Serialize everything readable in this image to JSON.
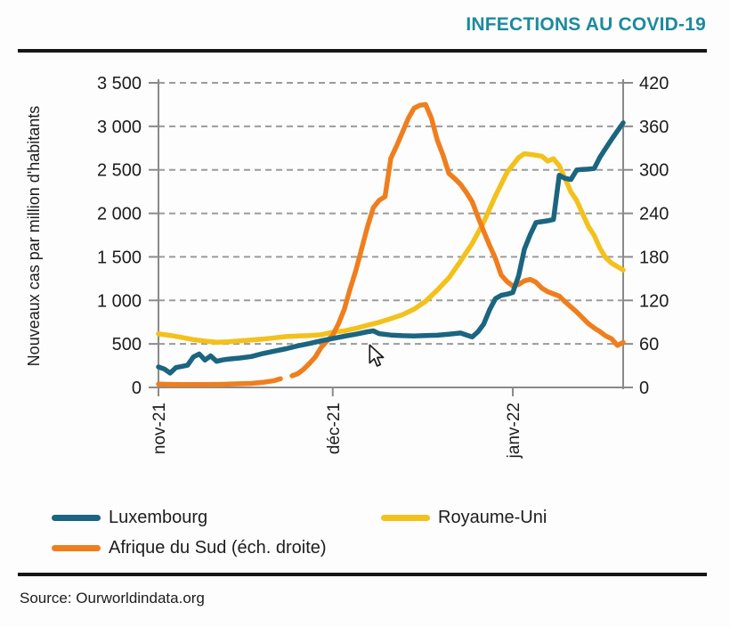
{
  "header": {
    "title": "INFECTIONS AU COVID-19",
    "title_color": "#1C8A9E"
  },
  "source": {
    "text": "Source: Ourworldindata.org"
  },
  "icons": {
    "mouse_cursor": "arrow-pointer"
  },
  "chart_data": {
    "type": "line",
    "title": "INFECTIONS AU COVID-19",
    "x_unit": "days since 1 nov 2021",
    "x_range_days": [
      0,
      80
    ],
    "grid": "horizontal dashed",
    "legend_position": "bottom-left",
    "x_ticks": [
      {
        "day": 0,
        "label": "nov-21"
      },
      {
        "day": 30,
        "label": "déc-21"
      },
      {
        "day": 61,
        "label": "janv-22"
      }
    ],
    "y_left": {
      "title": "Nouveaux cas par million d'habitants",
      "min": 0,
      "max": 3500,
      "gridline_values": [
        500,
        1000,
        1500,
        2000,
        2500,
        3000,
        3500
      ],
      "ticks": [
        {
          "value": 0,
          "label": "0"
        },
        {
          "value": 500,
          "label": "500"
        },
        {
          "value": 1000,
          "label": "1 000"
        },
        {
          "value": 1500,
          "label": "1 500"
        },
        {
          "value": 2000,
          "label": "2 000"
        },
        {
          "value": 2500,
          "label": "2 500"
        },
        {
          "value": 3000,
          "label": "3 000"
        },
        {
          "value": 3500,
          "label": "3 500"
        }
      ]
    },
    "y_right": {
      "title": "éch. droite (Afrique du Sud)",
      "min": 0,
      "max": 420,
      "ticks": [
        {
          "value": 0,
          "label": "0"
        },
        {
          "value": 60,
          "label": "60"
        },
        {
          "value": 120,
          "label": "120"
        },
        {
          "value": 180,
          "label": "180"
        },
        {
          "value": 240,
          "label": "240"
        },
        {
          "value": 300,
          "label": "300"
        },
        {
          "value": 360,
          "label": "360"
        },
        {
          "value": 420,
          "label": "420"
        }
      ]
    },
    "series": [
      {
        "name": "Luxembourg",
        "slug": "luxembourg",
        "color": "#1B6580",
        "axis": "left",
        "z": 3,
        "segments": [
          [
            [
              0,
              235
            ],
            [
              1,
              212
            ],
            [
              2,
              165
            ],
            [
              3,
              228
            ],
            [
              4,
              242
            ],
            [
              5,
              255
            ],
            [
              6,
              350
            ],
            [
              7,
              385
            ],
            [
              8,
              315
            ],
            [
              9,
              362
            ],
            [
              10,
              300
            ],
            [
              11,
              315
            ],
            [
              12,
              325
            ],
            [
              14,
              338
            ],
            [
              16,
              355
            ],
            [
              18,
              390
            ],
            [
              20,
              418
            ],
            [
              22,
              445
            ],
            [
              24,
              478
            ],
            [
              26,
              505
            ],
            [
              28,
              535
            ],
            [
              30,
              562
            ],
            [
              32,
              588
            ],
            [
              34,
              612
            ],
            [
              36,
              640
            ],
            [
              37,
              650
            ],
            [
              38,
              618
            ],
            [
              40,
              602
            ],
            [
              42,
              595
            ],
            [
              44,
              590
            ],
            [
              46,
              596
            ],
            [
              48,
              600
            ],
            [
              50,
              612
            ],
            [
              52,
              625
            ],
            [
              53,
              603
            ],
            [
              54,
              580
            ],
            [
              55,
              640
            ],
            [
              56,
              730
            ],
            [
              57,
              890
            ],
            [
              58,
              1020
            ],
            [
              59,
              1058
            ],
            [
              60,
              1072
            ],
            [
              61,
              1090
            ],
            [
              62,
              1280
            ],
            [
              63,
              1590
            ],
            [
              64,
              1755
            ],
            [
              65,
              1895
            ],
            [
              66,
              1905
            ],
            [
              67,
              1915
            ],
            [
              68,
              1930
            ],
            [
              69,
              2438
            ],
            [
              70,
              2402
            ],
            [
              71,
              2390
            ],
            [
              72,
              2498
            ],
            [
              73,
              2505
            ],
            [
              74,
              2508
            ],
            [
              75,
              2515
            ],
            [
              76,
              2645
            ],
            [
              77,
              2748
            ],
            [
              78,
              2850
            ],
            [
              79,
              2945
            ],
            [
              80,
              3040
            ]
          ]
        ]
      },
      {
        "name": "Royaume-Uni",
        "slug": "royaume-uni",
        "color": "#F3C11C",
        "axis": "left",
        "z": 1,
        "segments": [
          [
            [
              0,
              615
            ],
            [
              2,
              598
            ],
            [
              4,
              575
            ],
            [
              6,
              550
            ],
            [
              8,
              532
            ],
            [
              10,
              520
            ],
            [
              12,
              524
            ],
            [
              14,
              534
            ],
            [
              16,
              545
            ],
            [
              18,
              556
            ],
            [
              20,
              570
            ],
            [
              22,
              584
            ],
            [
              24,
              590
            ],
            [
              26,
              596
            ],
            [
              28,
              605
            ],
            [
              30,
              636
            ],
            [
              32,
              650
            ],
            [
              34,
              680
            ],
            [
              36,
              714
            ],
            [
              38,
              748
            ],
            [
              40,
              790
            ],
            [
              42,
              836
            ],
            [
              44,
              900
            ],
            [
              46,
              990
            ],
            [
              48,
              1118
            ],
            [
              50,
              1260
            ],
            [
              52,
              1450
            ],
            [
              54,
              1654
            ],
            [
              56,
              1900
            ],
            [
              58,
              2200
            ],
            [
              60,
              2470
            ],
            [
              61,
              2555
            ],
            [
              62,
              2640
            ],
            [
              63,
              2685
            ],
            [
              64,
              2678
            ],
            [
              65,
              2668
            ],
            [
              66,
              2658
            ],
            [
              67,
              2600
            ],
            [
              68,
              2628
            ],
            [
              69,
              2548
            ],
            [
              70,
              2400
            ],
            [
              71,
              2245
            ],
            [
              72,
              2148
            ],
            [
              73,
              2000
            ],
            [
              74,
              1850
            ],
            [
              75,
              1748
            ],
            [
              76,
              1600
            ],
            [
              77,
              1490
            ],
            [
              78,
              1428
            ],
            [
              79,
              1388
            ],
            [
              80,
              1350
            ]
          ]
        ]
      },
      {
        "name": "Afrique du Sud (éch. droite)",
        "slug": "afrique-du-sud",
        "color": "#EF7E1E",
        "axis": "right",
        "z": 2,
        "segments": [
          [
            [
              0,
              4.5
            ],
            [
              2,
              4.2
            ],
            [
              4,
              4
            ],
            [
              6,
              4
            ],
            [
              8,
              4
            ],
            [
              10,
              4.2
            ],
            [
              12,
              4.5
            ],
            [
              14,
              5
            ],
            [
              16,
              5.5
            ],
            [
              18,
              7
            ],
            [
              20,
              9.5
            ],
            [
              21,
              12
            ]
          ],
          [
            [
              23,
              16
            ],
            [
              24,
              19
            ],
            [
              25,
              25
            ],
            [
              26,
              33
            ],
            [
              27,
              42
            ],
            [
              28,
              55
            ],
            [
              29,
              64
            ],
            [
              30,
              72
            ],
            [
              31,
              88
            ],
            [
              32,
              108
            ],
            [
              33,
              136
            ],
            [
              34,
              162
            ],
            [
              35,
              192
            ],
            [
              36,
              222
            ],
            [
              37,
              248
            ],
            [
              38,
              258
            ],
            [
              39,
              263
            ],
            [
              40,
              316
            ],
            [
              41,
              333
            ],
            [
              42,
              352
            ],
            [
              43,
              371
            ],
            [
              44,
              385
            ],
            [
              45,
              389
            ],
            [
              46,
              390
            ],
            [
              47,
              371
            ],
            [
              48,
              341
            ],
            [
              49,
              320
            ],
            [
              50,
              295
            ],
            [
              51,
              288
            ],
            [
              52,
              280
            ],
            [
              53,
              269
            ],
            [
              54,
              256
            ],
            [
              55,
              235
            ],
            [
              56,
              215
            ],
            [
              57,
              196
            ],
            [
              58,
              178
            ],
            [
              59,
              155
            ],
            [
              60,
              146
            ],
            [
              61,
              140
            ],
            [
              62,
              142
            ],
            [
              63,
              147
            ],
            [
              64,
              149
            ],
            [
              65,
              145
            ],
            [
              66,
              137
            ],
            [
              67,
              132
            ],
            [
              68,
              129
            ],
            [
              69,
              126
            ],
            [
              70,
              118
            ],
            [
              71,
              111
            ],
            [
              72,
              104
            ],
            [
              73,
              96
            ],
            [
              74,
              88
            ],
            [
              75,
              82
            ],
            [
              76,
              77
            ],
            [
              77,
              71
            ],
            [
              78,
              67
            ],
            [
              79,
              58
            ],
            [
              80,
              62
            ]
          ]
        ]
      }
    ]
  }
}
